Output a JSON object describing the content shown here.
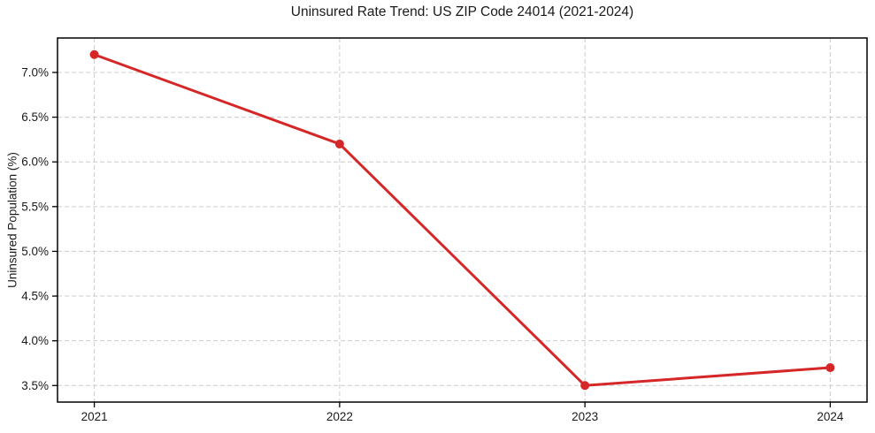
{
  "chart_data": {
    "type": "line",
    "title": "Uninsured Rate Trend: US ZIP Code 24014 (2021-2024)",
    "xlabel": "",
    "ylabel": "Uninsured Population (%)",
    "x": [
      2021,
      2022,
      2023,
      2024
    ],
    "series": [
      {
        "name": "Uninsured Population (%)",
        "values": [
          7.2,
          6.2,
          3.5,
          3.7
        ],
        "color": "#d62728",
        "marker": "circle",
        "line_width": 3,
        "marker_radius": 5
      }
    ],
    "xtick_labels": [
      "2021",
      "2022",
      "2023",
      "2024"
    ],
    "ytick_values": [
      3.5,
      4.0,
      4.5,
      5.0,
      5.5,
      6.0,
      6.5,
      7.0
    ],
    "ytick_labels": [
      "3.5%",
      "4.0%",
      "4.5%",
      "5.0%",
      "5.5%",
      "6.0%",
      "6.5%",
      "7.0%"
    ],
    "xlim": [
      2020.85,
      2024.15
    ],
    "ylim": [
      3.315,
      7.385
    ],
    "grid": true,
    "grid_style": "dashed",
    "legend": "none",
    "colors": {
      "line": "#d62728",
      "grid": "#cccccc",
      "text": "#1a1a1a",
      "spine": "#000000",
      "background": "#ffffff"
    }
  }
}
